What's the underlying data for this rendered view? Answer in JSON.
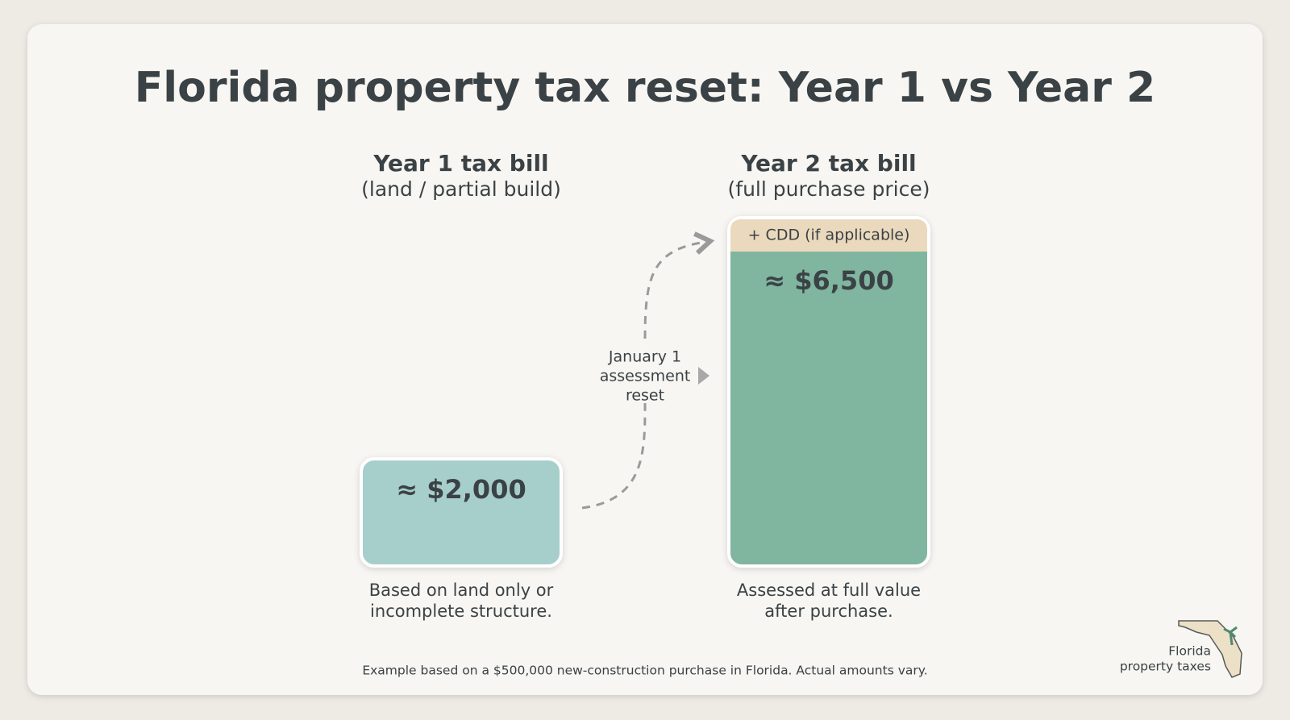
{
  "chart_data": {
    "type": "bar",
    "title": "Florida property tax reset: Year 1 vs Year 2",
    "categories": [
      "Year 1 tax bill",
      "Year 2 tax bill"
    ],
    "subtitles": [
      "(land / partial build)",
      "(full purchase price)"
    ],
    "values": [
      2000,
      6500
    ],
    "value_labels": [
      "≈ $2,000",
      "≈ $6,500"
    ],
    "colors": [
      "#a6cfcb",
      "#80b59f"
    ],
    "captions": [
      [
        "Based on land only or",
        "incomplete structure."
      ],
      [
        "Assessed at full value",
        "after purchase."
      ]
    ],
    "cdd_label": "+ CDD (if applicable)",
    "annotation": [
      "January 1",
      "assessment",
      "reset"
    ],
    "footnote": "Example based on a $500,000 new-construction purchase in Florida. Actual amounts vary.",
    "logo": [
      "Florida",
      "property taxes"
    ]
  }
}
